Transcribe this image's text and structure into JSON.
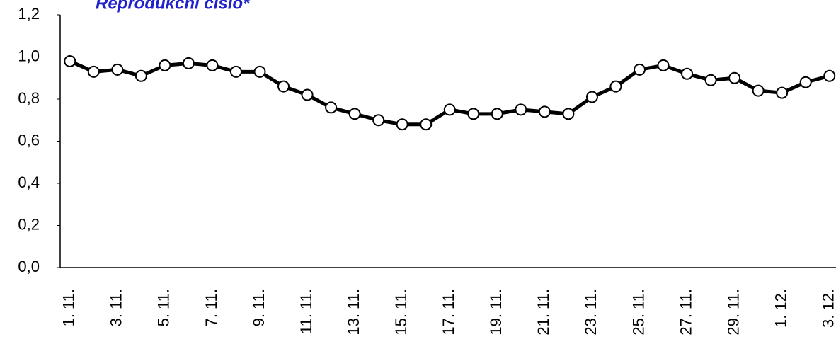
{
  "chart_data": {
    "type": "line",
    "title": "Reprodukční číslo*",
    "categories": [
      "1. 11.",
      null,
      "3. 11.",
      null,
      "5. 11.",
      null,
      "7. 11.",
      null,
      "9. 11.",
      null,
      "11. 11.",
      null,
      "13. 11.",
      null,
      "15. 11.",
      null,
      "17. 11.",
      null,
      "19. 11.",
      null,
      "21. 11.",
      null,
      "23. 11.",
      null,
      "25. 11.",
      null,
      "27. 11.",
      null,
      "29. 11.",
      null,
      "1. 12.",
      null,
      "3. 12."
    ],
    "series": [
      {
        "color": "#000000",
        "values": [
          0.98,
          0.93,
          0.94,
          0.91,
          0.96,
          0.97,
          0.96,
          0.93,
          0.93,
          0.86,
          0.82,
          0.76,
          0.73,
          0.7,
          0.68,
          0.68,
          0.75,
          0.73,
          0.73,
          0.75,
          0.74,
          0.73,
          0.81,
          0.86,
          0.94,
          0.96,
          0.92,
          0.89,
          0.9,
          0.84,
          0.83,
          0.88,
          0.91
        ]
      }
    ],
    "ylim": [
      0,
      1.2
    ],
    "yticks": [
      {
        "value": 0,
        "label": "0,0"
      },
      {
        "value": 0.2,
        "label": "0,2"
      },
      {
        "value": 0.4,
        "label": "0,4"
      },
      {
        "value": 0.6,
        "label": "0,6"
      },
      {
        "value": 0.8,
        "label": "0,8"
      },
      {
        "value": 1.0,
        "label": "1,0"
      },
      {
        "value": 1.2,
        "label": "1,2"
      }
    ]
  }
}
